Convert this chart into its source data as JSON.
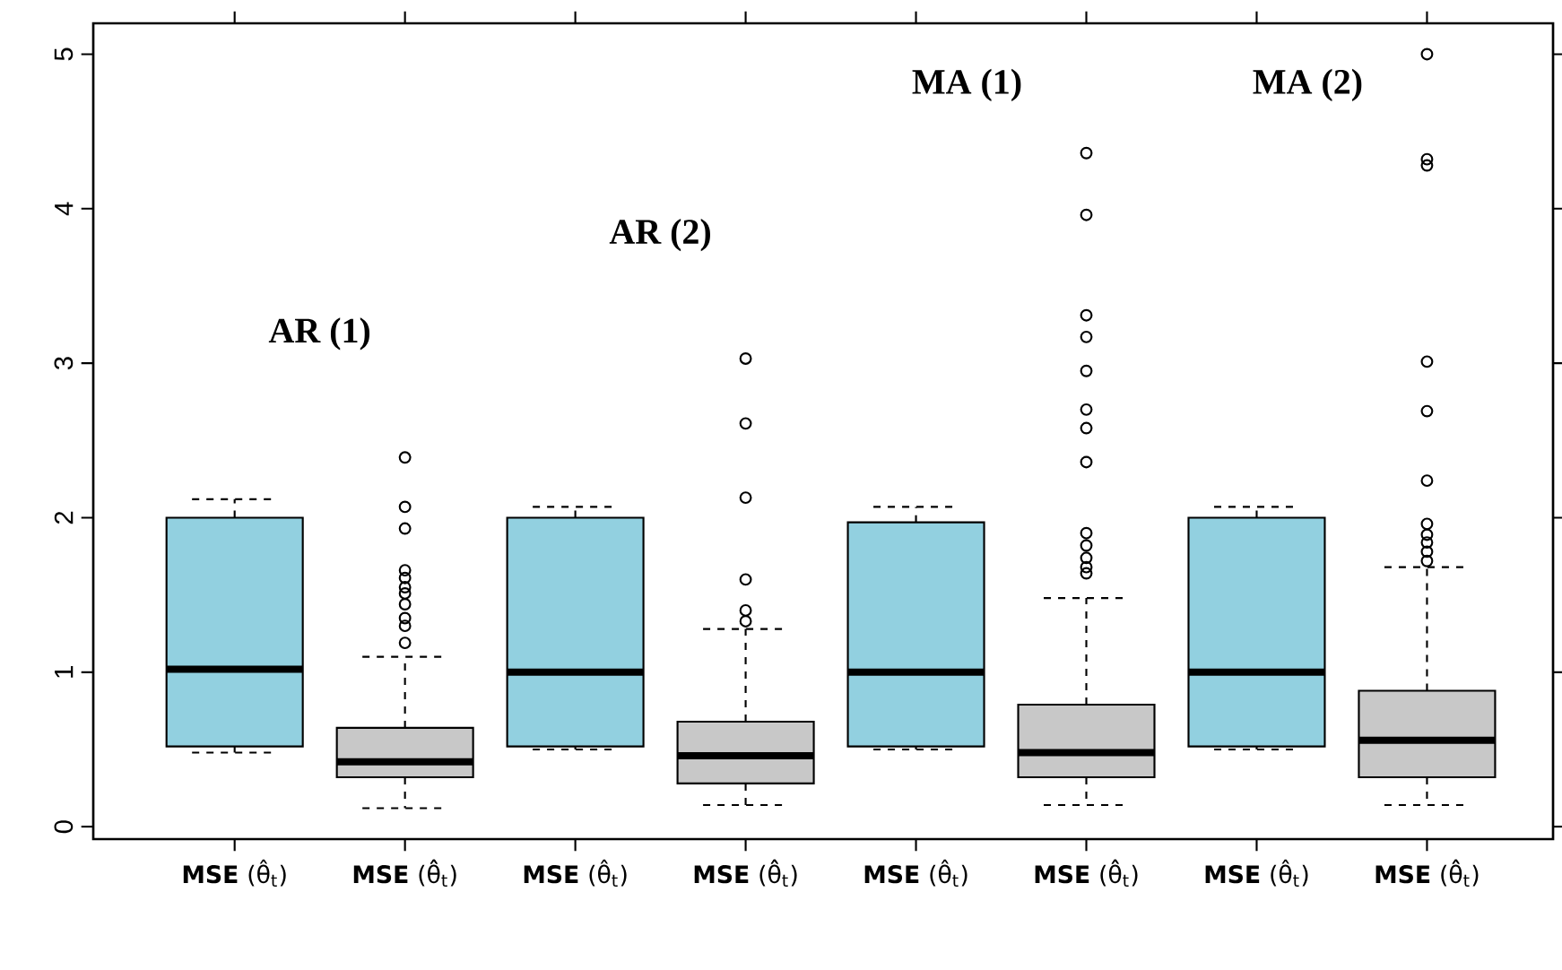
{
  "chart_data": {
    "type": "box",
    "categories": [
      "**MSE** (θ̂$_{t}$)",
      "**MSE** (θ̂̂$_{t}$)",
      "**MSE** (θ̂$_{t}$)",
      "**MSE** (θ̂̂$_{t}$)",
      "**MSE** (θ̂$_{t}$)",
      "**MSE** (θ̂̂$_{t}$)",
      "**MSE** (θ̂$_{t}$)",
      "**MSE** (θ̂̂$_{t}$)"
    ],
    "colors": [
      "#92d0e0",
      "#c8c8c8",
      "#92d0e0",
      "#c8c8c8",
      "#92d0e0",
      "#c8c8c8",
      "#92d0e0",
      "#c8c8c8"
    ],
    "boxes": [
      {
        "low": 0.48,
        "q1": 0.52,
        "median": 1.02,
        "q3": 2.0,
        "high": 2.12
      },
      {
        "low": 0.12,
        "q1": 0.32,
        "median": 0.42,
        "q3": 0.64,
        "high": 1.1,
        "outliers": [
          1.19,
          1.3,
          1.35,
          1.44,
          1.51,
          1.55,
          1.61,
          1.66,
          1.93,
          2.07,
          2.39
        ]
      },
      {
        "low": 0.5,
        "q1": 0.52,
        "median": 1.0,
        "q3": 2.0,
        "high": 2.07
      },
      {
        "low": 0.14,
        "q1": 0.28,
        "median": 0.46,
        "q3": 0.68,
        "high": 1.28,
        "outliers": [
          1.33,
          1.4,
          1.6,
          2.13,
          2.61,
          3.03
        ]
      },
      {
        "low": 0.5,
        "q1": 0.52,
        "median": 1.0,
        "q3": 1.97,
        "high": 2.07
      },
      {
        "low": 0.14,
        "q1": 0.32,
        "median": 0.48,
        "q3": 0.79,
        "high": 1.48,
        "outliers": [
          1.64,
          1.68,
          1.74,
          1.82,
          1.9,
          2.36,
          2.58,
          2.7,
          2.95,
          3.17,
          3.31,
          3.96,
          4.36
        ]
      },
      {
        "low": 0.5,
        "q1": 0.52,
        "median": 1.0,
        "q3": 2.0,
        "high": 2.07
      },
      {
        "low": 0.14,
        "q1": 0.32,
        "median": 0.56,
        "q3": 0.88,
        "high": 1.68,
        "outliers": [
          1.72,
          1.78,
          1.84,
          1.89,
          1.96,
          2.24,
          2.69,
          3.01,
          4.28,
          4.32,
          5.0
        ]
      }
    ],
    "ylim": [
      -0.08,
      5.2
    ],
    "yticks": [
      0,
      1,
      2,
      3,
      4,
      5
    ],
    "annotations": [
      "AR (1)",
      "AR (2)",
      "MA (1)",
      "MA (2)"
    ]
  }
}
